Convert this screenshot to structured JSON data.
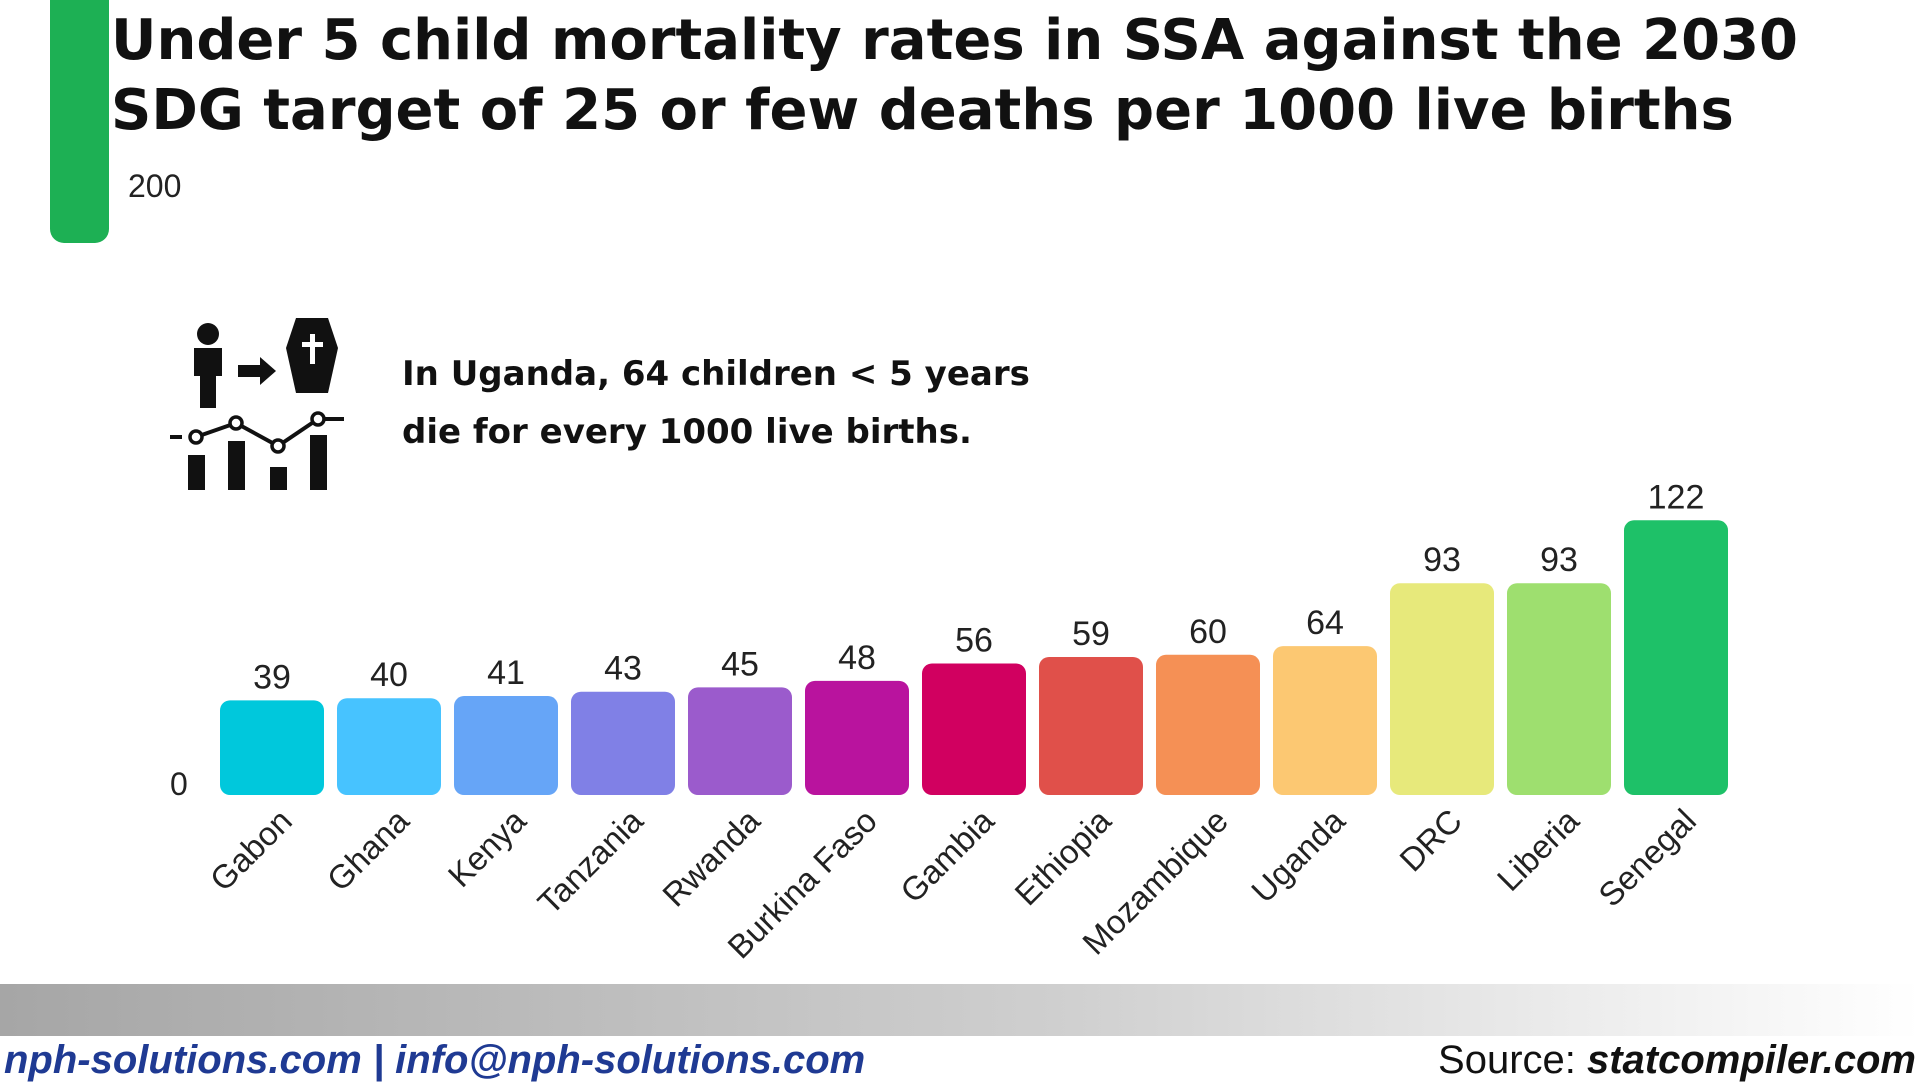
{
  "header": {
    "title": "Under 5 child mortality rates in SSA against the 2030 SDG target of 25 or few deaths per 1000 live births"
  },
  "annotation": {
    "line1": "In Uganda, 64 children < 5 years",
    "line2": "die for every 1000 live births."
  },
  "icons": [
    "child-icon",
    "arrow-right-icon",
    "coffin-icon",
    "line-chart-icon",
    "bar-chart-icon"
  ],
  "chart_data": {
    "type": "bar",
    "title": "Under 5 child mortality rates in SSA against the 2030 SDG target of 25 or few deaths per 1000 live births",
    "xlabel": "",
    "ylabel": "",
    "ylim": [
      0,
      200
    ],
    "y_tick_labels": [
      "200",
      "0"
    ],
    "grid": false,
    "legend": "none",
    "categories": [
      "Gabon",
      "Ghana",
      "Kenya",
      "Tanzania",
      "Rwanda",
      "Burkina Faso",
      "Gambia",
      "Ethiopia",
      "Mozambique",
      "Uganda",
      "DRC",
      "Liberia",
      "Senegal"
    ],
    "values": [
      39,
      40,
      41,
      43,
      45,
      48,
      56,
      59,
      60,
      64,
      93,
      93,
      122
    ],
    "colors": [
      "#00c8dc",
      "#47c3ff",
      "#66a5f7",
      "#8080e6",
      "#9b5bcc",
      "#b9139e",
      "#d10060",
      "#e0504a",
      "#f59055",
      "#fcc872",
      "#e7e97b",
      "#9edf6f",
      "#1ec168"
    ]
  },
  "footer": {
    "contact": "nph-solutions.com | info@nph-solutions.com",
    "source_label": "Source: ",
    "source_value": "statcompiler.com"
  }
}
